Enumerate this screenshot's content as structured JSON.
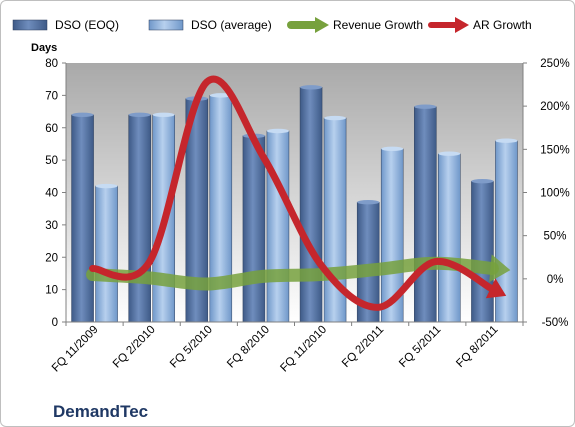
{
  "chart_data": {
    "type": "bar",
    "brand": "DemandTec",
    "y_left_title": "Days",
    "categories": [
      "FQ 11/2009",
      "FQ 2/2010",
      "FQ 5/2010",
      "FQ 8/2010",
      "FQ 11/2010",
      "FQ 2/2011",
      "FQ 5/2011",
      "FQ 8/2011"
    ],
    "ylim_left": [
      0,
      80
    ],
    "yticks_left": [
      0,
      10,
      20,
      30,
      40,
      50,
      60,
      70,
      80
    ],
    "ylim_right": [
      -50,
      250
    ],
    "yticks_right": [
      "-50%",
      "0%",
      "50%",
      "100%",
      "150%",
      "200%",
      "250%"
    ],
    "yticks_right_values": [
      -50,
      0,
      50,
      100,
      150,
      200,
      250
    ],
    "bar_series": [
      {
        "name": "DSO (EOQ)",
        "color": "#4f6d9e",
        "values": [
          64,
          64,
          69,
          57.5,
          72.5,
          37,
          66.5,
          43.5
        ]
      },
      {
        "name": "DSO (average)",
        "color": "#8db3e2",
        "values": [
          42,
          64,
          70,
          59,
          63,
          53.5,
          52,
          56
        ]
      }
    ],
    "line_series": [
      {
        "name": "Revenue Growth",
        "color": "#77a13d",
        "axis": "right",
        "values": [
          5,
          1,
          -6,
          3,
          5,
          11,
          18,
          12
        ]
      },
      {
        "name": "AR Growth",
        "color": "#c5262c",
        "axis": "right",
        "values": [
          12,
          20,
          228,
          140,
          16,
          -33,
          20,
          -12
        ]
      }
    ],
    "legend_position": "top",
    "grid": false
  }
}
